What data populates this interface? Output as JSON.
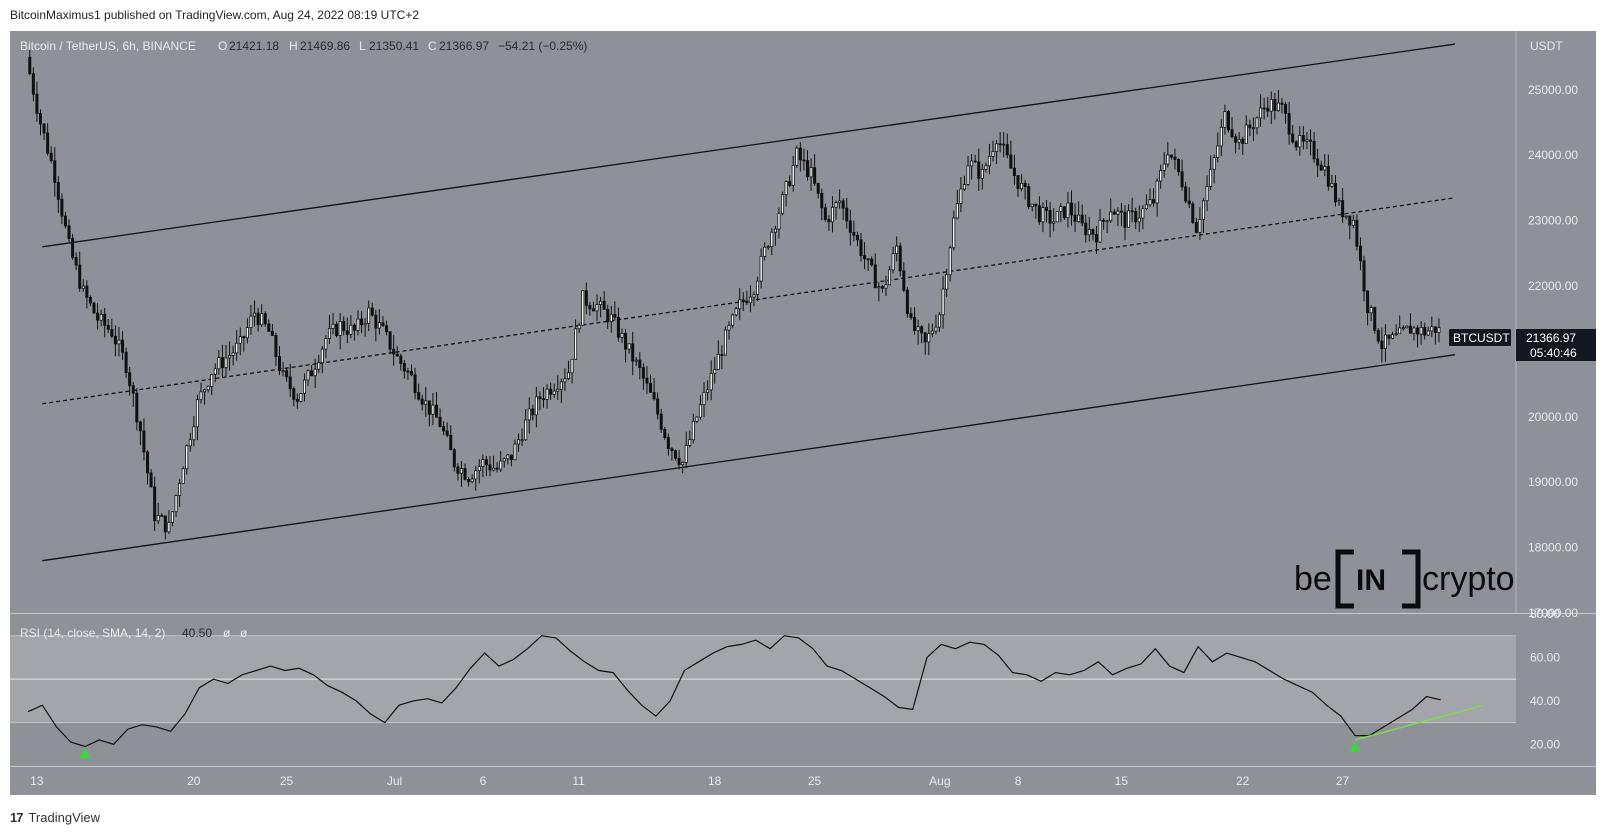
{
  "publisher_line": "BitcoinMaximus1 published on TradingView.com, Aug 24, 2022 08:19 UTC+2",
  "footer_brand": "TradingView",
  "watermark": "beincrypto",
  "chart_data": [
    {
      "type": "candlestick",
      "title": "Bitcoin / TetherUS, 6h, BINANCE",
      "ohlc_legend": {
        "O_label": "O",
        "O": "21421.18",
        "H_label": "H",
        "H": "21469.86",
        "L_label": "L",
        "L": "21350.41",
        "C_label": "C",
        "C": "21366.97",
        "change": "−54.21 (−0.25%)"
      },
      "currency_label": "USDT",
      "ylim": [
        17000,
        25900
      ],
      "y_ticks": [
        "25000.00",
        "24000.00",
        "23000.00",
        "22000.00",
        "21000.00",
        "20000.00",
        "19000.00",
        "18000.00",
        "17000.00"
      ],
      "x_ticks": [
        "13",
        "20",
        "25",
        "Jul",
        "6",
        "11",
        "18",
        "25",
        "Aug",
        "8",
        "15",
        "22",
        "27"
      ],
      "price_tag": {
        "symbol": "BTCUSDT",
        "value": "21366.97",
        "countdown": "05:40:46"
      },
      "close_path": [
        [
          0,
          25500
        ],
        [
          1,
          24500
        ],
        [
          2,
          23700
        ],
        [
          3,
          22600
        ],
        [
          4,
          21900
        ],
        [
          5,
          21500
        ],
        [
          6,
          21300
        ],
        [
          7,
          20800
        ],
        [
          8,
          19800
        ],
        [
          9,
          18500
        ],
        [
          10,
          18300
        ],
        [
          11,
          19300
        ],
        [
          12,
          20200
        ],
        [
          13,
          20700
        ],
        [
          14,
          20900
        ],
        [
          15,
          21100
        ],
        [
          16,
          21600
        ],
        [
          17,
          21300
        ],
        [
          18,
          20600
        ],
        [
          19,
          20300
        ],
        [
          20,
          20700
        ],
        [
          21,
          21200
        ],
        [
          22,
          21400
        ],
        [
          23,
          21300
        ],
        [
          24,
          21600
        ],
        [
          25,
          21300
        ],
        [
          26,
          20900
        ],
        [
          27,
          20600
        ],
        [
          28,
          20200
        ],
        [
          29,
          19900
        ],
        [
          30,
          19300
        ],
        [
          31,
          19100
        ],
        [
          32,
          19300
        ],
        [
          33,
          19200
        ],
        [
          34,
          19400
        ],
        [
          35,
          19900
        ],
        [
          36,
          20300
        ],
        [
          37,
          20500
        ],
        [
          38,
          20700
        ],
        [
          39,
          21800
        ],
        [
          40,
          21700
        ],
        [
          41,
          21500
        ],
        [
          42,
          21100
        ],
        [
          43,
          20700
        ],
        [
          44,
          20200
        ],
        [
          45,
          19600
        ],
        [
          46,
          19300
        ],
        [
          47,
          20000
        ],
        [
          48,
          20600
        ],
        [
          49,
          21200
        ],
        [
          50,
          21700
        ],
        [
          51,
          22000
        ],
        [
          52,
          22700
        ],
        [
          53,
          23300
        ],
        [
          54,
          24000
        ],
        [
          55,
          23700
        ],
        [
          56,
          23000
        ],
        [
          57,
          23300
        ],
        [
          58,
          22800
        ],
        [
          59,
          22300
        ],
        [
          60,
          21900
        ],
        [
          61,
          22600
        ],
        [
          62,
          21400
        ],
        [
          63,
          21100
        ],
        [
          64,
          21600
        ],
        [
          65,
          23000
        ],
        [
          66,
          23900
        ],
        [
          67,
          23700
        ],
        [
          68,
          24300
        ],
        [
          69,
          23800
        ],
        [
          70,
          23400
        ],
        [
          71,
          23100
        ],
        [
          72,
          23000
        ],
        [
          73,
          23200
        ],
        [
          74,
          22900
        ],
        [
          75,
          22800
        ],
        [
          76,
          23200
        ],
        [
          77,
          23000
        ],
        [
          78,
          23100
        ],
        [
          79,
          23300
        ],
        [
          80,
          24100
        ],
        [
          81,
          23600
        ],
        [
          82,
          22900
        ],
        [
          83,
          23700
        ],
        [
          84,
          24600
        ],
        [
          85,
          24200
        ],
        [
          86,
          24500
        ],
        [
          87,
          24800
        ],
        [
          88,
          24700
        ],
        [
          89,
          24200
        ],
        [
          90,
          24100
        ],
        [
          91,
          23800
        ],
        [
          92,
          23200
        ],
        [
          93,
          23000
        ],
        [
          94,
          21700
        ],
        [
          95,
          21100
        ],
        [
          96,
          21200
        ],
        [
          97,
          21350
        ],
        [
          98,
          21300
        ],
        [
          99,
          21367
        ]
      ],
      "channel": {
        "upper": [
          [
            1,
            22600
          ],
          [
            100,
            25700
          ]
        ],
        "middle": [
          [
            1,
            20200
          ],
          [
            100,
            23350
          ]
        ],
        "lower": [
          [
            1,
            17800
          ],
          [
            100,
            20950
          ]
        ]
      }
    },
    {
      "type": "line",
      "title": "RSI (14, close, SMA, 14, 2)",
      "legend_value": "40.50",
      "legend_extra": [
        "ø",
        "ø"
      ],
      "ylim": [
        10,
        80
      ],
      "y_ticks": [
        "80.00",
        "60.00",
        "40.00",
        "20.00"
      ],
      "band": [
        30,
        70
      ],
      "midline": 50,
      "values": [
        [
          0,
          35
        ],
        [
          1,
          38
        ],
        [
          2,
          28
        ],
        [
          3,
          21
        ],
        [
          4,
          19
        ],
        [
          5,
          22
        ],
        [
          6,
          20
        ],
        [
          7,
          27
        ],
        [
          8,
          29
        ],
        [
          9,
          28
        ],
        [
          10,
          26
        ],
        [
          11,
          34
        ],
        [
          12,
          46
        ],
        [
          13,
          50
        ],
        [
          14,
          48
        ],
        [
          15,
          52
        ],
        [
          16,
          54
        ],
        [
          17,
          56
        ],
        [
          18,
          54
        ],
        [
          19,
          55
        ],
        [
          20,
          52
        ],
        [
          21,
          47
        ],
        [
          22,
          44
        ],
        [
          23,
          40
        ],
        [
          24,
          34
        ],
        [
          25,
          30
        ],
        [
          26,
          38
        ],
        [
          27,
          40
        ],
        [
          28,
          41
        ],
        [
          29,
          39
        ],
        [
          30,
          46
        ],
        [
          31,
          55
        ],
        [
          32,
          62
        ],
        [
          33,
          56
        ],
        [
          34,
          59
        ],
        [
          35,
          64
        ],
        [
          36,
          70
        ],
        [
          37,
          69
        ],
        [
          38,
          63
        ],
        [
          39,
          58
        ],
        [
          40,
          54
        ],
        [
          41,
          53
        ],
        [
          42,
          45
        ],
        [
          43,
          38
        ],
        [
          44,
          33
        ],
        [
          45,
          40
        ],
        [
          46,
          54
        ],
        [
          47,
          58
        ],
        [
          48,
          62
        ],
        [
          49,
          65
        ],
        [
          50,
          66
        ],
        [
          51,
          68
        ],
        [
          52,
          64
        ],
        [
          53,
          70
        ],
        [
          54,
          69
        ],
        [
          55,
          64
        ],
        [
          56,
          56
        ],
        [
          57,
          54
        ],
        [
          58,
          50
        ],
        [
          59,
          46
        ],
        [
          60,
          42
        ],
        [
          61,
          37
        ],
        [
          62,
          36
        ],
        [
          63,
          60
        ],
        [
          64,
          66
        ],
        [
          65,
          64
        ],
        [
          66,
          67
        ],
        [
          67,
          66
        ],
        [
          68,
          61
        ],
        [
          69,
          53
        ],
        [
          70,
          52
        ],
        [
          71,
          49
        ],
        [
          72,
          53
        ],
        [
          73,
          52
        ],
        [
          74,
          54
        ],
        [
          75,
          58
        ],
        [
          76,
          52
        ],
        [
          77,
          55
        ],
        [
          78,
          57
        ],
        [
          79,
          64
        ],
        [
          80,
          56
        ],
        [
          81,
          53
        ],
        [
          82,
          65
        ],
        [
          83,
          58
        ],
        [
          84,
          62
        ],
        [
          85,
          60
        ],
        [
          86,
          58
        ],
        [
          87,
          54
        ],
        [
          88,
          50
        ],
        [
          89,
          47
        ],
        [
          90,
          44
        ],
        [
          91,
          38
        ],
        [
          92,
          33
        ],
        [
          93,
          24
        ],
        [
          94,
          24
        ],
        [
          95,
          28
        ],
        [
          96,
          32
        ],
        [
          97,
          36
        ],
        [
          98,
          42
        ],
        [
          99,
          40.5
        ]
      ],
      "trendline": [
        [
          93,
          22
        ],
        [
          102,
          38
        ]
      ],
      "markers": [
        [
          4,
          16
        ],
        [
          93,
          19
        ]
      ]
    }
  ]
}
